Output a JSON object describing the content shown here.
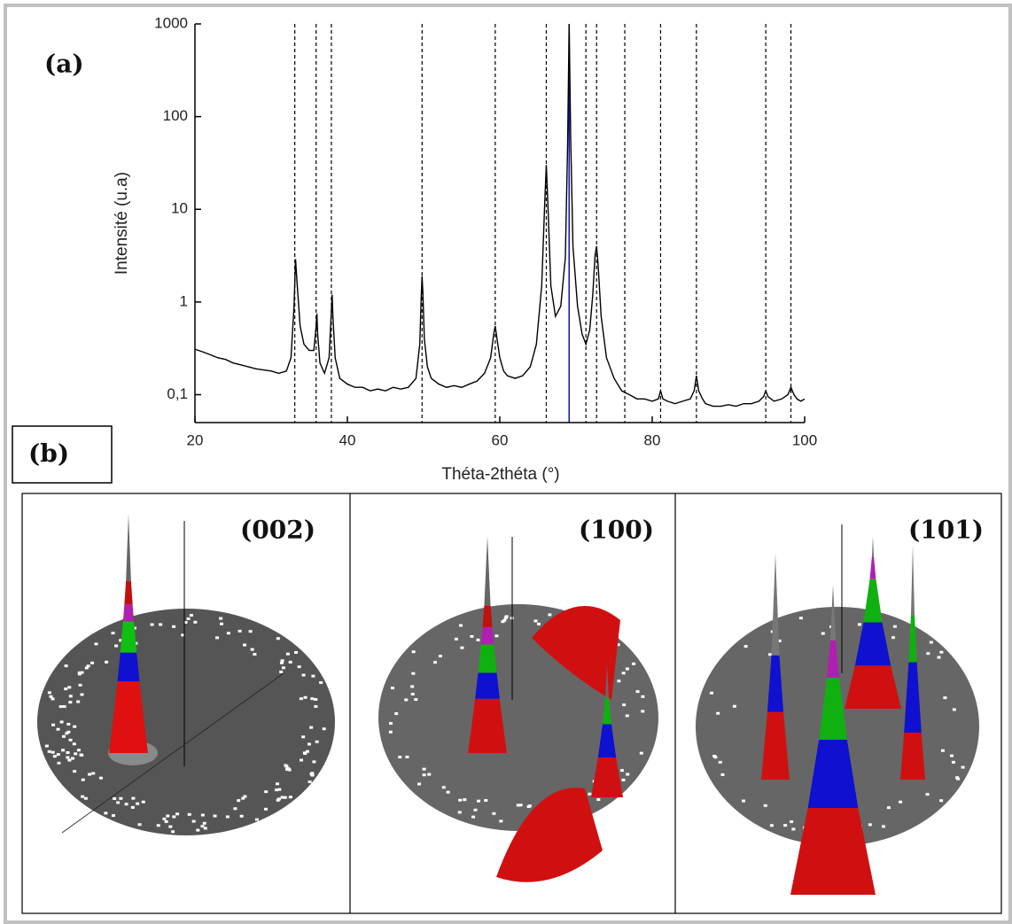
{
  "chart_data": {
    "type": "line",
    "y_label": "Intensité (u.a)",
    "x_label": "Théta-2théta (°)",
    "log_y": true,
    "color": "#000000",
    "xlim": [
      20,
      100
    ],
    "xticks": [
      20,
      40,
      60,
      80,
      100
    ],
    "ylim": [
      0.05,
      1000
    ],
    "yticks": [
      {
        "value": 0.1,
        "label": "0,1"
      },
      1,
      10,
      100,
      1000
    ],
    "x": [
      20,
      21,
      22,
      23,
      24,
      25,
      26,
      27,
      28,
      29,
      30,
      31,
      32,
      32.6,
      33.0,
      33.2,
      33.4,
      33.8,
      34.3,
      35.0,
      35.6,
      35.9,
      36.0,
      36.1,
      36.4,
      37.0,
      37.6,
      37.9,
      38.0,
      38.1,
      38.4,
      39,
      40,
      41,
      42,
      43,
      44,
      45,
      46,
      47,
      48,
      49,
      49.5,
      49.7,
      49.8,
      49.9,
      50.1,
      50.5,
      51,
      52,
      53,
      54,
      55,
      56,
      57,
      58,
      58.8,
      59.2,
      59.4,
      59.6,
      60,
      60.5,
      61,
      62,
      63,
      64,
      64.8,
      65.5,
      65.9,
      66.1,
      66.3,
      66.7,
      67.3,
      68.0,
      68.6,
      68.9,
      69.1,
      69.3,
      69.6,
      70.2,
      70.8,
      71.3,
      71.8,
      72.2,
      72.5,
      72.7,
      72.9,
      73.3,
      74,
      75,
      76,
      77,
      78,
      79,
      80,
      80.8,
      81.1,
      81.4,
      82,
      83,
      84,
      85,
      85.5,
      85.8,
      86.1,
      86.6,
      87,
      88,
      89,
      90,
      91,
      92,
      93,
      94,
      94.6,
      94.9,
      95.2,
      96,
      97,
      97.8,
      98.2,
      98.6,
      99,
      99.5,
      100
    ],
    "values": [
      0.31,
      0.29,
      0.27,
      0.25,
      0.24,
      0.22,
      0.21,
      0.2,
      0.19,
      0.185,
      0.18,
      0.17,
      0.18,
      0.25,
      0.9,
      2.9,
      1.6,
      0.55,
      0.35,
      0.3,
      0.3,
      0.55,
      0.75,
      0.45,
      0.22,
      0.17,
      0.25,
      0.8,
      1.2,
      0.7,
      0.25,
      0.15,
      0.13,
      0.12,
      0.12,
      0.11,
      0.115,
      0.11,
      0.12,
      0.115,
      0.12,
      0.15,
      0.35,
      1.2,
      1.9,
      1.3,
      0.4,
      0.2,
      0.15,
      0.13,
      0.12,
      0.125,
      0.12,
      0.13,
      0.14,
      0.17,
      0.25,
      0.45,
      0.55,
      0.42,
      0.25,
      0.18,
      0.16,
      0.15,
      0.16,
      0.2,
      0.35,
      1.5,
      12,
      30,
      12,
      1.5,
      0.7,
      0.9,
      3,
      50,
      1000,
      60,
      4,
      0.9,
      0.45,
      0.35,
      0.5,
      1.2,
      3.2,
      4,
      2.5,
      0.7,
      0.25,
      0.15,
      0.11,
      0.1,
      0.09,
      0.09,
      0.085,
      0.09,
      0.11,
      0.09,
      0.085,
      0.08,
      0.085,
      0.09,
      0.11,
      0.16,
      0.11,
      0.09,
      0.08,
      0.075,
      0.075,
      0.078,
      0.075,
      0.08,
      0.08,
      0.085,
      0.095,
      0.11,
      0.095,
      0.085,
      0.09,
      0.1,
      0.12,
      0.1,
      0.09,
      0.085,
      0.09
    ],
    "reference_lines": {
      "values": [
        33.1,
        35.9,
        37.9,
        49.8,
        59.4,
        66.1,
        71.3,
        72.7,
        76.4,
        81.1,
        85.8,
        94.9,
        98.2
      ],
      "color": "#000000",
      "dashed": true
    },
    "marker_line": {
      "value": 69.1,
      "color": "#1a1ab0"
    }
  },
  "panels": {
    "a_label": "(a)",
    "b_label": "(b)",
    "pole_figures": [
      {
        "label": "(002)"
      },
      {
        "label": "(100)"
      },
      {
        "label": "(101)"
      }
    ]
  }
}
